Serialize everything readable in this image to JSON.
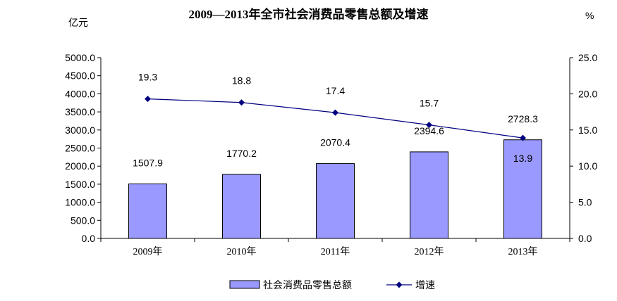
{
  "chart_data": {
    "type": "bar",
    "title": "2009—2013年全市社会消费品零售总额及增速",
    "ylabel_left": "亿元",
    "ylabel_right": "%",
    "categories": [
      "2009年",
      "2010年",
      "2011年",
      "2012年",
      "2013年"
    ],
    "series": [
      {
        "name": "社会消费品零售总额",
        "type": "bar",
        "axis": "left",
        "values": [
          1507.9,
          1770.2,
          2070.4,
          2394.6,
          2728.3
        ],
        "labels": [
          "1507.9",
          "1770.2",
          "2070.4",
          "2394.6",
          "2728.3"
        ],
        "color": "#9999ff"
      },
      {
        "name": "增速",
        "type": "line",
        "axis": "right",
        "values": [
          19.3,
          18.8,
          17.4,
          15.7,
          13.9
        ],
        "labels": [
          "19.3",
          "18.8",
          "17.4",
          "15.7",
          "13.9"
        ],
        "color": "#000080"
      }
    ],
    "y_left": {
      "lim": [
        0,
        5000
      ],
      "step": 500,
      "ticks": [
        "0.0",
        "500.0",
        "1000.0",
        "1500.0",
        "2000.0",
        "2500.0",
        "3000.0",
        "3500.0",
        "4000.0",
        "4500.0",
        "5000.0"
      ]
    },
    "y_right": {
      "lim": [
        0,
        25
      ],
      "step": 5,
      "ticks": [
        "0.0",
        "5.0",
        "10.0",
        "15.0",
        "20.0",
        "25.0"
      ]
    },
    "grid": false,
    "legend": "bottom"
  }
}
